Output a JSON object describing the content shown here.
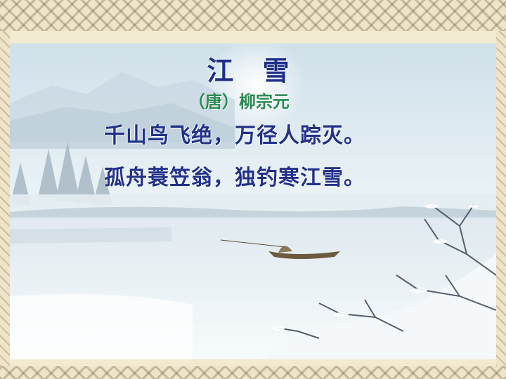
{
  "poem": {
    "title": "江  雪",
    "author": "（唐）柳宗元",
    "lines": [
      "千山鸟飞绝，万径人踪灭。",
      "孤舟蓑笠翁，独钓寒江雪。"
    ]
  },
  "colors": {
    "title": "#1d2f8a",
    "author": "#2a8a52",
    "verse": "#22318a",
    "frame": "#efe4c8"
  },
  "background": {
    "scene": "snowy-river-landscape-painting",
    "icons": [
      "fishing-boat-icon",
      "snowy-tree-icon",
      "mountain-icon"
    ]
  }
}
